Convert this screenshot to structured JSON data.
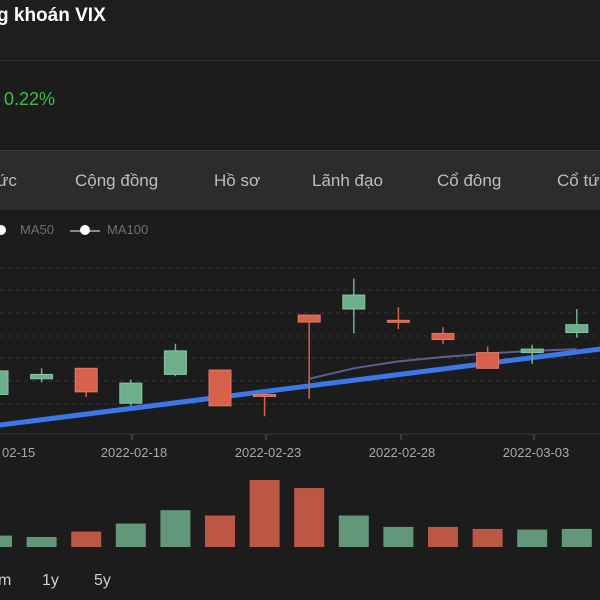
{
  "header": {
    "title": "g khoán VIX"
  },
  "quote": {
    "change_percent": "0.22%",
    "change_color": "#3fbf3f"
  },
  "tabs": [
    {
      "label": "ức"
    },
    {
      "label": "Cộng đồng"
    },
    {
      "label": "Hồ sơ"
    },
    {
      "label": "Lãnh đạo"
    },
    {
      "label": "Cổ đông"
    },
    {
      "label": "Cổ tức"
    }
  ],
  "legend": [
    {
      "label": "MA50"
    },
    {
      "label": "MA100"
    }
  ],
  "colors": {
    "up": "#6fae8a",
    "down": "#d8614b",
    "trend": "#3a78ea",
    "ma": "#5a5f8c"
  },
  "chart_data": {
    "type": "candlestick",
    "x_tick_labels": [
      "02-15",
      "2022-02-18",
      "2022-02-23",
      "2022-02-28",
      "2022-03-03"
    ],
    "price_scale": "relative (no y-axis labels shown)",
    "candles": [
      {
        "index": 0,
        "open": 0.25,
        "close": 0.52,
        "high": 0.62,
        "low": 0.18,
        "dir": "up"
      },
      {
        "index": 1,
        "open": 0.43,
        "close": 0.48,
        "high": 0.55,
        "low": 0.39,
        "dir": "up"
      },
      {
        "index": 2,
        "open": 0.55,
        "close": 0.28,
        "high": 0.55,
        "low": 0.22,
        "dir": "down"
      },
      {
        "index": 3,
        "open": 0.15,
        "close": 0.38,
        "high": 0.42,
        "low": 0.12,
        "dir": "up"
      },
      {
        "index": 4,
        "open": 0.48,
        "close": 0.75,
        "high": 0.83,
        "low": 0.46,
        "dir": "up"
      },
      {
        "index": 5,
        "open": 0.53,
        "close": 0.12,
        "high": 0.53,
        "low": 0.12,
        "dir": "down"
      },
      {
        "index": 6,
        "open": 0.25,
        "close": 0.23,
        "high": 0.25,
        "low": 0.0,
        "dir": "down"
      },
      {
        "index": 7,
        "open": 1.16,
        "close": 1.08,
        "high": 1.16,
        "low": 0.2,
        "dir": "down"
      },
      {
        "index": 8,
        "open": 1.23,
        "close": 1.39,
        "high": 1.58,
        "low": 0.95,
        "dir": "up"
      },
      {
        "index": 9,
        "open": 1.1,
        "close": 1.1,
        "high": 1.25,
        "low": 1.0,
        "dir": "down"
      },
      {
        "index": 10,
        "open": 0.95,
        "close": 0.88,
        "high": 1.02,
        "low": 0.83,
        "dir": "down"
      },
      {
        "index": 11,
        "open": 0.73,
        "close": 0.55,
        "high": 0.8,
        "low": 0.55,
        "dir": "down"
      },
      {
        "index": 12,
        "open": 0.73,
        "close": 0.77,
        "high": 0.82,
        "low": 0.6,
        "dir": "up"
      },
      {
        "index": 13,
        "open": 0.96,
        "close": 1.05,
        "high": 1.23,
        "low": 0.9,
        "dir": "up"
      }
    ],
    "volume": [
      {
        "index": 0,
        "value": 0.17,
        "dir": "up"
      },
      {
        "index": 1,
        "value": 0.15,
        "dir": "up"
      },
      {
        "index": 2,
        "value": 0.23,
        "dir": "down"
      },
      {
        "index": 3,
        "value": 0.35,
        "dir": "up"
      },
      {
        "index": 4,
        "value": 0.55,
        "dir": "up"
      },
      {
        "index": 5,
        "value": 0.47,
        "dir": "down"
      },
      {
        "index": 6,
        "value": 1.0,
        "dir": "down"
      },
      {
        "index": 7,
        "value": 0.88,
        "dir": "down"
      },
      {
        "index": 8,
        "value": 0.47,
        "dir": "up"
      },
      {
        "index": 9,
        "value": 0.3,
        "dir": "up"
      },
      {
        "index": 10,
        "value": 0.3,
        "dir": "down"
      },
      {
        "index": 11,
        "value": 0.27,
        "dir": "down"
      },
      {
        "index": 12,
        "value": 0.26,
        "dir": "up"
      },
      {
        "index": 13,
        "value": 0.27,
        "dir": "up"
      }
    ],
    "trendline": {
      "start_value": -0.1,
      "end_value": 0.77
    },
    "ma_line": [
      {
        "index": 7.0,
        "value": 0.43
      },
      {
        "index": 8.0,
        "value": 0.55
      },
      {
        "index": 9.0,
        "value": 0.63
      },
      {
        "index": 10.0,
        "value": 0.68
      },
      {
        "index": 11.0,
        "value": 0.72
      },
      {
        "index": 12.0,
        "value": 0.75
      },
      {
        "index": 13.0,
        "value": 0.77
      }
    ]
  },
  "range_buttons": [
    {
      "label": "m"
    },
    {
      "label": "1y"
    },
    {
      "label": "5y"
    }
  ]
}
